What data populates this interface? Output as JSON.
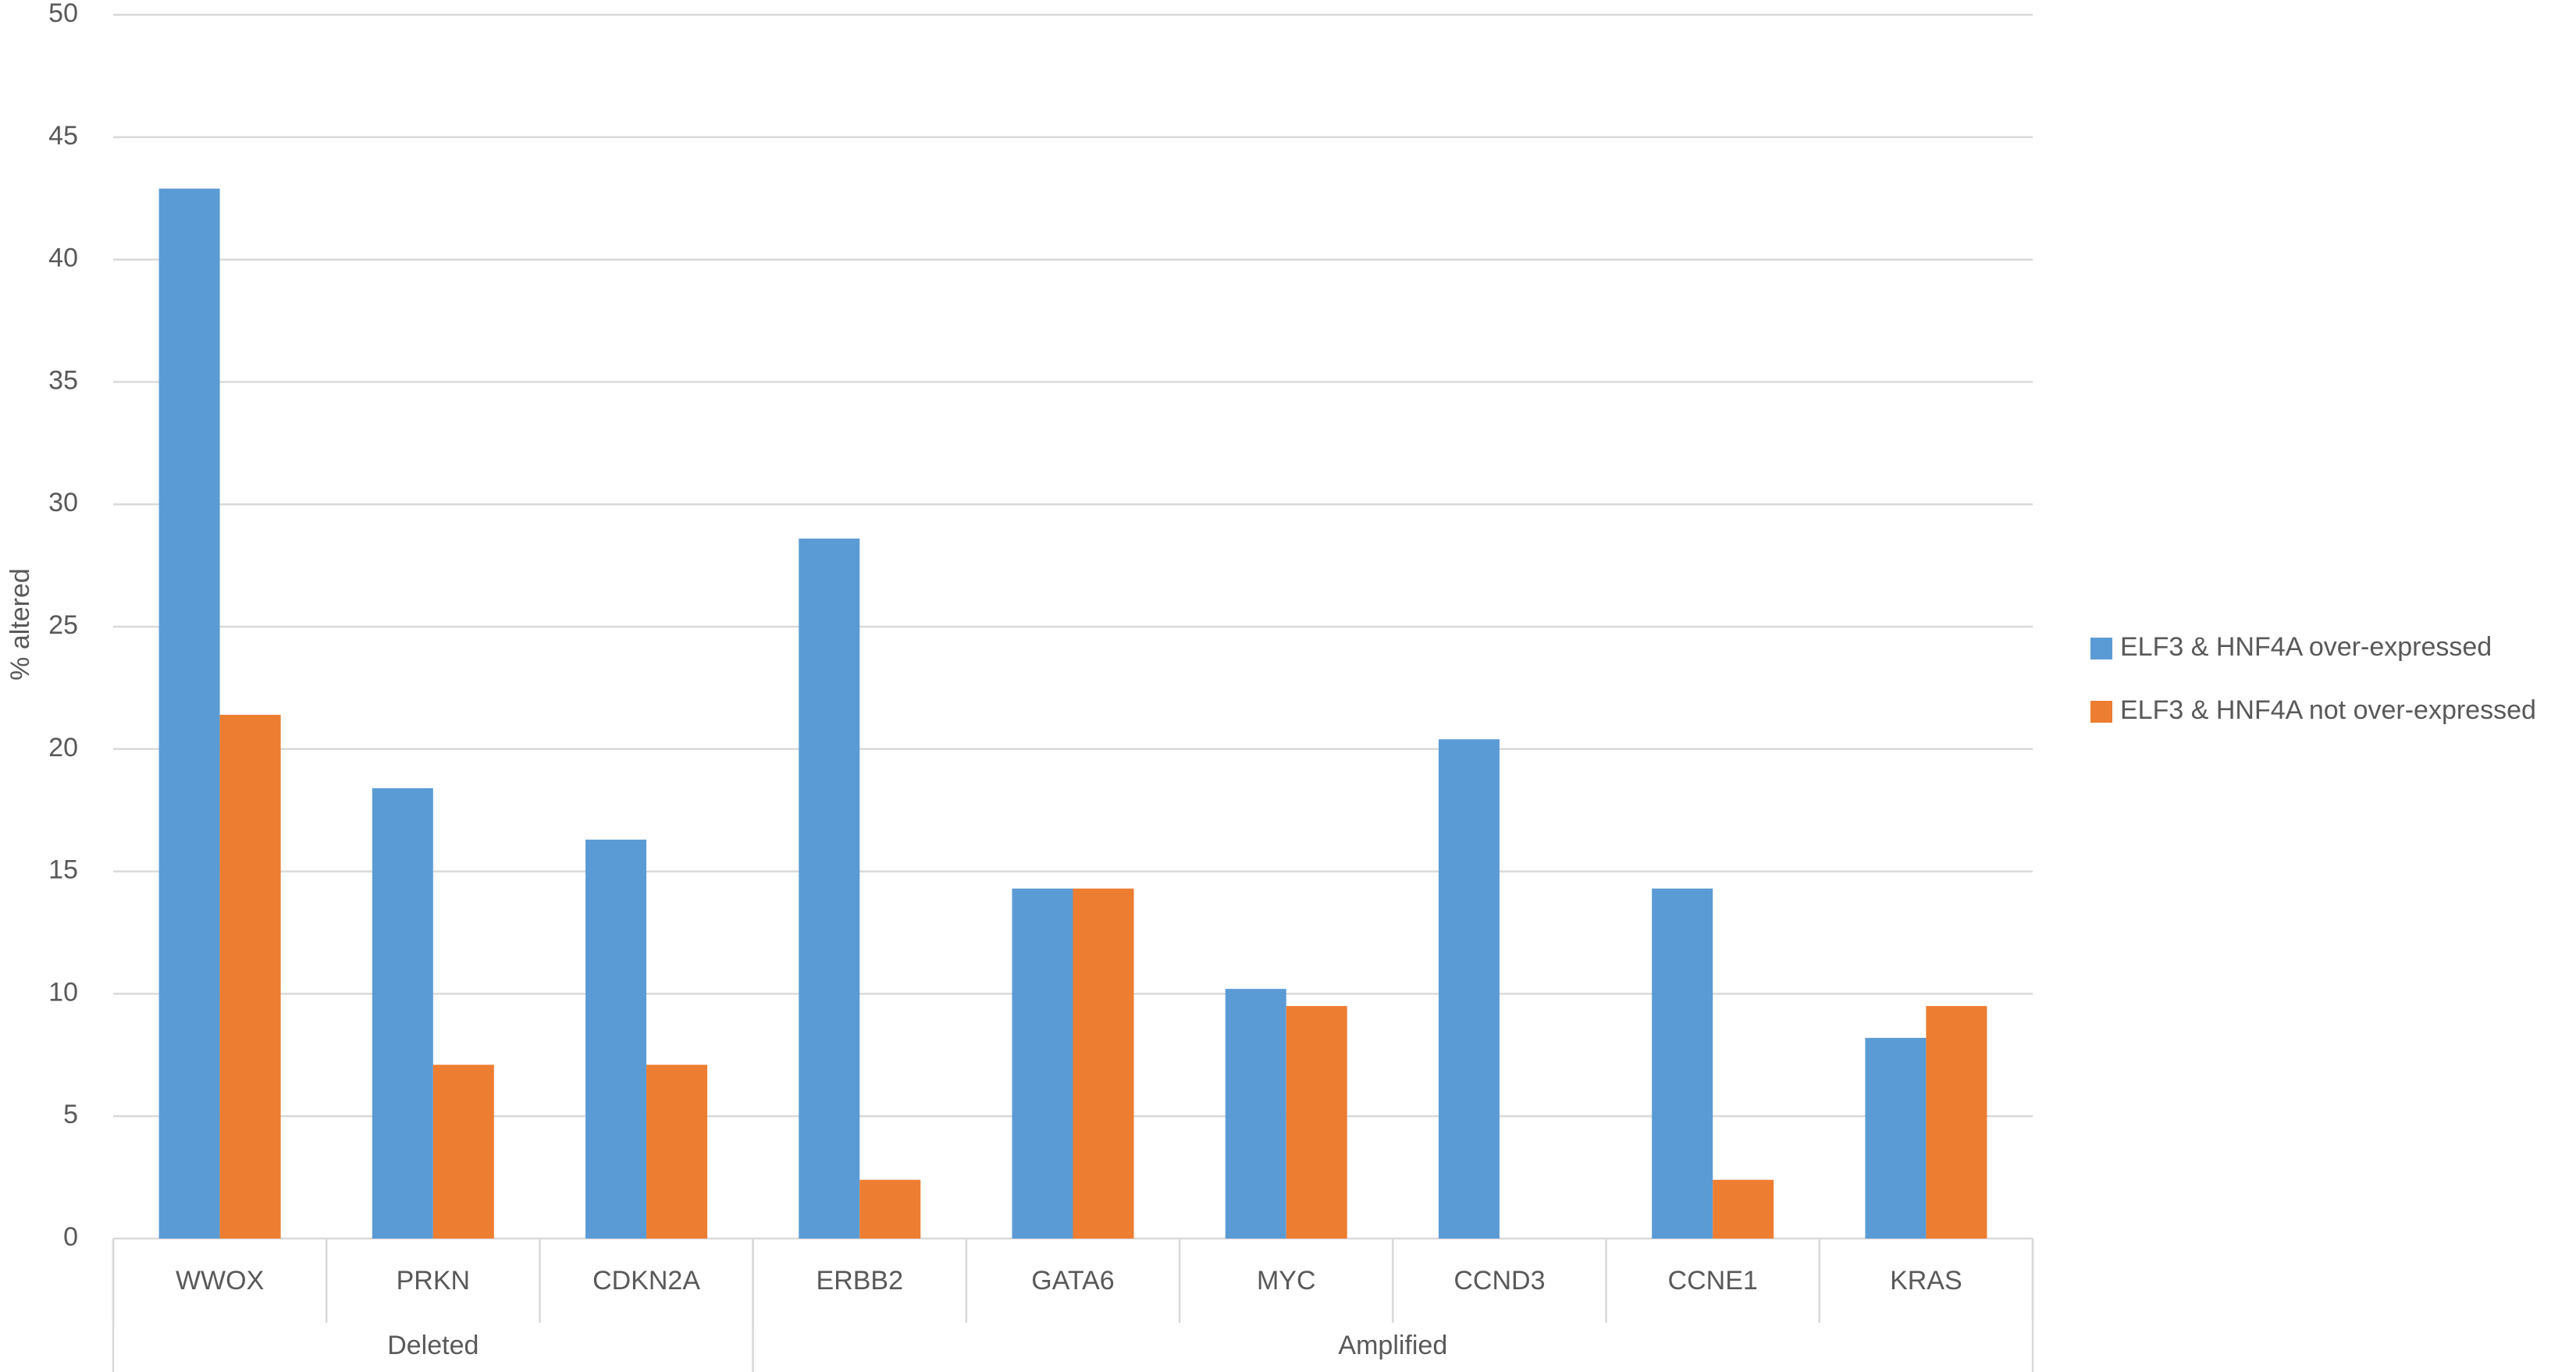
{
  "chart_data": {
    "type": "bar",
    "y_label": "% altered",
    "categories": [
      "WWOX",
      "PRKN",
      "CDKN2A",
      "ERBB2",
      "GATA6",
      "MYC",
      "CCND3",
      "CCNE1",
      "KRAS"
    ],
    "groups": [
      {
        "name": "Deleted",
        "size": 3
      },
      {
        "name": "Amplified",
        "size": 6
      }
    ],
    "series": [
      {
        "name": "ELF3 & HNF4A over-expressed",
        "color": "#5b9bd5",
        "values": [
          42.9,
          18.4,
          16.3,
          28.6,
          14.3,
          10.2,
          20.4,
          14.3,
          8.2
        ]
      },
      {
        "name": "ELF3 & HNF4A not over-expressed",
        "color": "#ed7d31",
        "values": [
          21.4,
          7.1,
          7.1,
          2.4,
          14.3,
          9.5,
          0,
          2.4,
          9.5
        ]
      }
    ],
    "ylim": [
      0,
      50
    ],
    "yticks": [
      0,
      5,
      10,
      15,
      20,
      25,
      30,
      35,
      40,
      45,
      50
    ],
    "grid": true,
    "legend": "right"
  }
}
